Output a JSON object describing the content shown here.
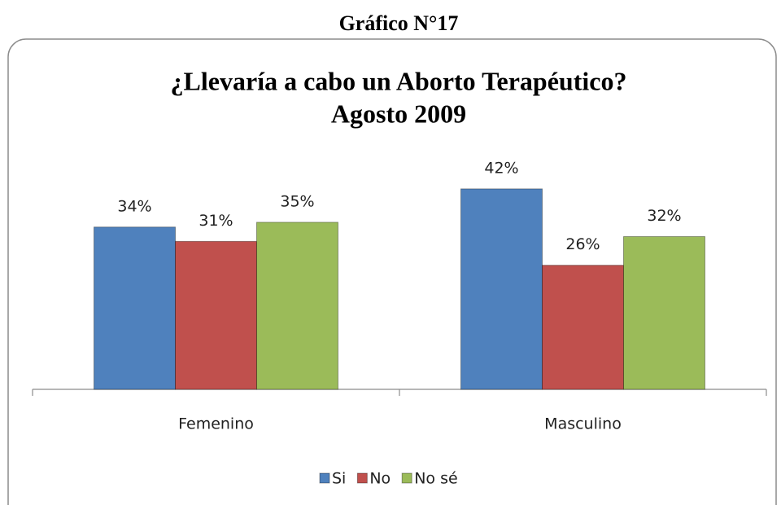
{
  "page_title": "Gráfico N°17",
  "chart_data": {
    "type": "bar",
    "title": "¿Llevaría a cabo un Aborto Terapéutico?",
    "subtitle": "Agosto 2009",
    "categories": [
      "Femenino",
      "Masculino"
    ],
    "series": [
      {
        "name": "Si",
        "color": "#4f81bd",
        "values": [
          34,
          42
        ],
        "value_labels": [
          "34%",
          "42%"
        ]
      },
      {
        "name": "No",
        "color": "#c0504d",
        "values": [
          31,
          26
        ],
        "value_labels": [
          "31%",
          "26%"
        ]
      },
      {
        "name": "No sé",
        "color": "#9bbb59",
        "values": [
          35,
          32
        ],
        "value_labels": [
          "35%",
          "32%"
        ]
      }
    ],
    "ylim": [
      0,
      50
    ],
    "legend": "bottom"
  }
}
